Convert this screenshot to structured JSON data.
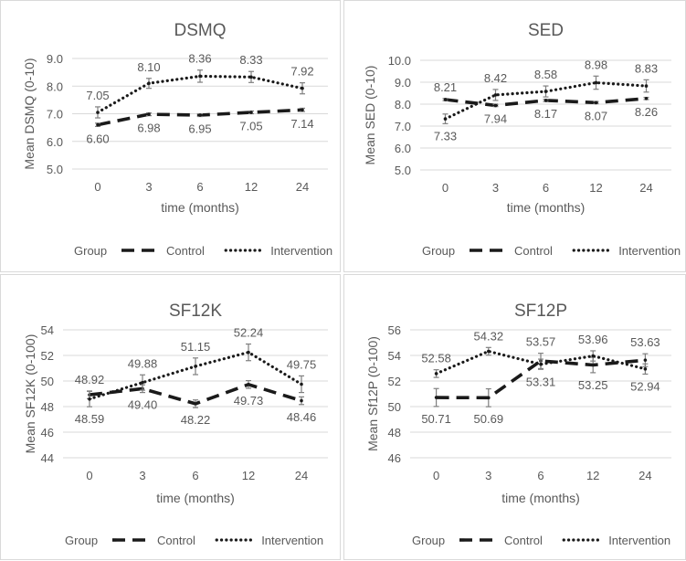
{
  "chart_data": [
    {
      "type": "line",
      "title": "DSMQ",
      "xlabel": "time (months)",
      "ylabel": "Mean DSMQ (0-10)",
      "categories": [
        "0",
        "3",
        "6",
        "12",
        "24"
      ],
      "ylim": [
        5.0,
        9.0
      ],
      "yticks": [
        "5.0",
        "6.0",
        "7.0",
        "8.0",
        "9.0"
      ],
      "legend_title": "Group",
      "series": [
        {
          "name": "Control",
          "style": "dashed",
          "values": [
            6.6,
            6.98,
            6.95,
            7.05,
            7.14
          ],
          "labels": [
            "6.60",
            "6.98",
            "6.95",
            "7.05",
            "7.14"
          ],
          "errors": [
            0.06,
            0.05,
            0.05,
            0.05,
            0.06
          ]
        },
        {
          "name": "Intervention",
          "style": "dotted",
          "values": [
            7.05,
            8.1,
            8.36,
            8.33,
            7.92
          ],
          "labels": [
            "7.05",
            "8.10",
            "8.36",
            "8.33",
            "7.92"
          ],
          "errors": [
            0.2,
            0.18,
            0.22,
            0.2,
            0.2
          ]
        }
      ]
    },
    {
      "type": "line",
      "title": "SED",
      "xlabel": "time (months)",
      "ylabel": "Mean SED (0-10)",
      "categories": [
        "0",
        "3",
        "6",
        "12",
        "24"
      ],
      "ylim": [
        5.0,
        10.0
      ],
      "yticks": [
        "5.0",
        "6.0",
        "7.0",
        "8.0",
        "9.0",
        "10.0"
      ],
      "legend_title": "Group",
      "series": [
        {
          "name": "Control",
          "style": "dashed",
          "values": [
            8.21,
            7.94,
            8.17,
            8.07,
            8.26
          ],
          "labels": [
            "8.21",
            "7.94",
            "8.17",
            "8.07",
            "8.26"
          ],
          "errors": [
            0.05,
            0.05,
            0.05,
            0.05,
            0.05
          ]
        },
        {
          "name": "Intervention",
          "style": "dotted",
          "values": [
            7.33,
            8.42,
            8.58,
            8.98,
            8.83
          ],
          "labels": [
            "7.33",
            "8.42",
            "8.58",
            "8.98",
            "8.83"
          ],
          "errors": [
            0.22,
            0.25,
            0.25,
            0.3,
            0.28
          ]
        }
      ]
    },
    {
      "type": "line",
      "title": "SF12K",
      "xlabel": "time (months)",
      "ylabel": "Mean SF12K (0-100)",
      "categories": [
        "0",
        "3",
        "6",
        "12",
        "24"
      ],
      "ylim": [
        44,
        54
      ],
      "yticks": [
        "44",
        "46",
        "48",
        "50",
        "52",
        "54"
      ],
      "legend_title": "Group",
      "series": [
        {
          "name": "Control",
          "style": "dashed",
          "values": [
            48.92,
            49.4,
            48.22,
            49.73,
            48.46
          ],
          "labels": [
            "48.92",
            "49.40",
            "48.22",
            "49.73",
            "48.46"
          ],
          "errors": [
            0.3,
            0.3,
            0.3,
            0.3,
            0.3
          ]
        },
        {
          "name": "Intervention",
          "style": "dotted",
          "values": [
            48.59,
            49.88,
            51.15,
            52.24,
            49.75
          ],
          "labels": [
            "48.59",
            "49.88",
            "51.15",
            "52.24",
            "49.75"
          ],
          "errors": [
            0.6,
            0.6,
            0.65,
            0.65,
            0.65
          ]
        }
      ]
    },
    {
      "type": "line",
      "title": "SF12P",
      "xlabel": "time (months)",
      "ylabel": "Mean Sf12P (0-100)",
      "categories": [
        "0",
        "3",
        "6",
        "12",
        "24"
      ],
      "ylim": [
        46,
        56
      ],
      "yticks": [
        "46",
        "48",
        "50",
        "52",
        "54",
        "56"
      ],
      "legend_title": "Group",
      "series": [
        {
          "name": "Control",
          "style": "dashed",
          "values": [
            50.71,
            50.69,
            53.57,
            53.25,
            53.63
          ],
          "labels": [
            "50.71",
            "50.69",
            "53.57",
            "53.25",
            "53.63"
          ],
          "errors": [
            0.7,
            0.7,
            0.6,
            0.6,
            0.5
          ]
        },
        {
          "name": "Intervention",
          "style": "dotted",
          "values": [
            52.58,
            54.32,
            53.31,
            53.96,
            52.94
          ],
          "labels": [
            "52.58",
            "54.32",
            "53.31",
            "53.96",
            "52.94"
          ],
          "errors": [
            0.3,
            0.3,
            0.4,
            0.4,
            0.4
          ]
        }
      ]
    }
  ]
}
